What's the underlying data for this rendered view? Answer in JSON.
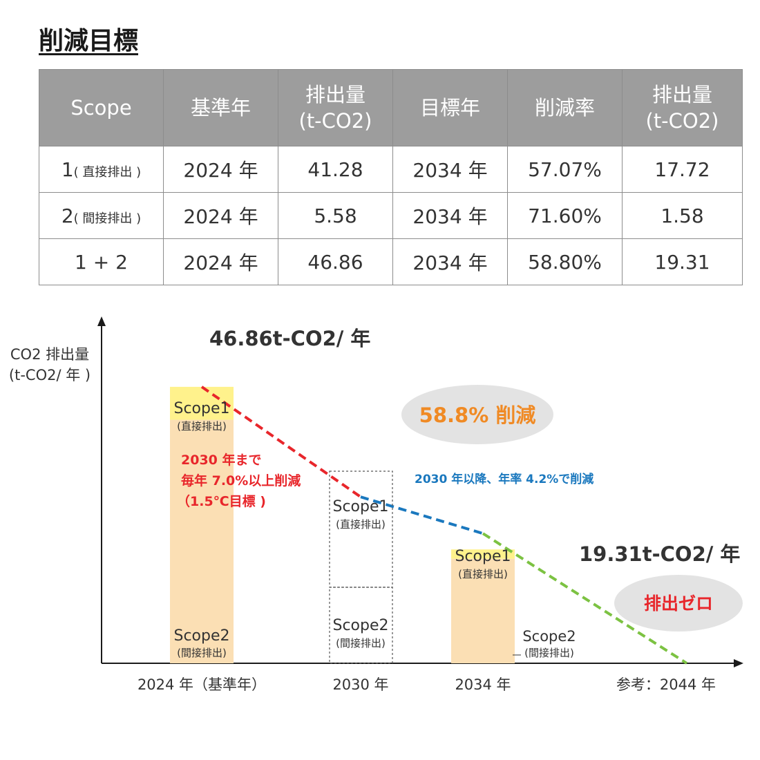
{
  "title": "削減目標",
  "table": {
    "headers": [
      "Scope",
      "基準年",
      "排出量\n(t-CO2)",
      "目標年",
      "削減率",
      "排出量\n(t-CO2)"
    ],
    "rows": [
      {
        "scope_num": "1",
        "scope_note": "( 直接排出 )",
        "base_year": "2024 年",
        "base_emission": "41.28",
        "target_year": "2034 年",
        "rate": "57.07%",
        "target_emission": "17.72"
      },
      {
        "scope_num": "2",
        "scope_note": "( 間接排出 )",
        "base_year": "2024 年",
        "base_emission": "5.58",
        "target_year": "2034 年",
        "rate": "71.60%",
        "target_emission": "1.58"
      },
      {
        "scope_num": "1 + 2",
        "scope_note": "",
        "base_year": "2024 年",
        "base_emission": "46.86",
        "target_year": "2034 年",
        "rate": "58.80%",
        "target_emission": "19.31"
      }
    ]
  },
  "chart_data": {
    "type": "bar",
    "ylabel": [
      "CO2 排出量",
      "(t-CO2/ 年 )"
    ],
    "categories": [
      "2024 年（基準年）",
      "2030 年",
      "2034 年",
      "参考：2044 年"
    ],
    "category_years": [
      2024,
      2030,
      2034,
      2044
    ],
    "series": [
      {
        "name": "Scope1",
        "sublabel": "(直接排出)",
        "values": [
          41.28,
          null,
          17.72,
          0
        ],
        "color": "#fbdfb4"
      },
      {
        "name": "Scope2",
        "sublabel": "(間接排出)",
        "values": [
          5.58,
          null,
          1.58,
          0
        ],
        "color": "#fff28c"
      }
    ],
    "projected_2030": {
      "scope1_label": "Scope1",
      "scope1_sublabel": "(直接排出)",
      "scope2_label": "Scope2",
      "scope2_sublabel": "(間接排出)"
    },
    "trend_lines": [
      {
        "from_year": 2024,
        "to_year": 2030,
        "from_value": 46.86,
        "to_value": 28.2,
        "color": "#e8262b",
        "style": "dashed"
      },
      {
        "from_year": 2030,
        "to_year": 2034,
        "from_value": 28.2,
        "to_value": 22.0,
        "color": "#1a78be",
        "style": "dashed"
      },
      {
        "from_year": 2034,
        "to_year": 2044,
        "from_value": 22.0,
        "to_value": 0,
        "color": "#7cc242",
        "style": "dashed"
      }
    ],
    "ylim": [
      0,
      52
    ],
    "annotations": {
      "top_value": "46.86t-CO2/ 年",
      "target_value": "19.31t-CO2/ 年",
      "reduction_badge": "58.8% 削減",
      "zero_badge": "排出ゼロ",
      "red_note": [
        "2030 年まで",
        "毎年 7.0%以上削減",
        "（1.5℃目標 )"
      ],
      "blue_note": "2030 年以降、年率 4.2%で削減"
    },
    "colors": {
      "axis": "#1a1a1a",
      "red": "#e8262b",
      "blue": "#1a78be",
      "green": "#7cc242",
      "orange": "#f08a24",
      "badge": "#e3e3e3"
    }
  }
}
